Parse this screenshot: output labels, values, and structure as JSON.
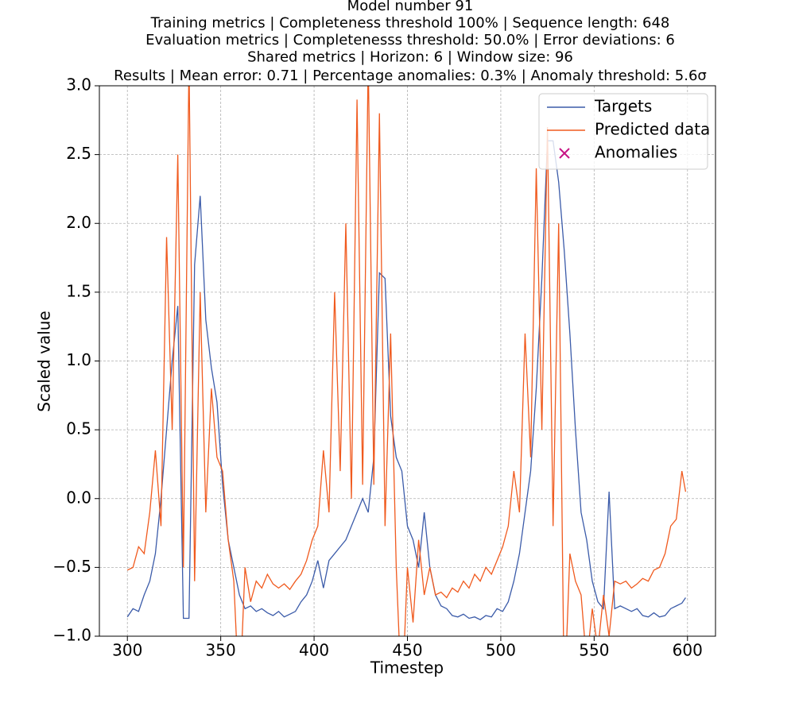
{
  "chart_data": {
    "type": "line",
    "title": [
      "Model number 91",
      "Training metrics | Completeness threshold 100% | Sequence length: 648",
      "Evaluation metrics | Completenesss threshold: 50.0% | Error deviations: 6",
      "Shared metrics | Horizon: 6 | Window size: 96",
      "Results | Mean error: 0.71 | Percentage anomalies: 0.3% | Anomaly threshold: 5.6σ"
    ],
    "x_label": "Timestep",
    "y_label": "Scaled value",
    "x": [
      300,
      303,
      306,
      309,
      312,
      315,
      318,
      321,
      324,
      327,
      330,
      333,
      336,
      339,
      342,
      345,
      348,
      351,
      354,
      357,
      360,
      363,
      366,
      369,
      372,
      375,
      378,
      381,
      384,
      387,
      390,
      393,
      396,
      399,
      402,
      405,
      408,
      411,
      414,
      417,
      420,
      423,
      426,
      429,
      432,
      435,
      438,
      441,
      444,
      447,
      450,
      453,
      456,
      459,
      462,
      465,
      468,
      471,
      474,
      477,
      480,
      483,
      486,
      489,
      492,
      495,
      498,
      501,
      504,
      507,
      510,
      513,
      516,
      519,
      522,
      525,
      528,
      531,
      534,
      537,
      540,
      543,
      546,
      549,
      552,
      555,
      558,
      561,
      564,
      567,
      570,
      573,
      576,
      579,
      582,
      585,
      588,
      591,
      594,
      597,
      599
    ],
    "series": [
      {
        "name": "Targets",
        "color": "#3b5ba9",
        "values": [
          -0.86,
          -0.8,
          -0.82,
          -0.7,
          -0.6,
          -0.4,
          0.0,
          0.5,
          1.0,
          1.4,
          -0.87,
          -0.87,
          1.7,
          2.2,
          1.3,
          0.95,
          0.7,
          0.1,
          -0.3,
          -0.5,
          -0.7,
          -0.8,
          -0.78,
          -0.82,
          -0.8,
          -0.83,
          -0.85,
          -0.82,
          -0.86,
          -0.84,
          -0.82,
          -0.75,
          -0.7,
          -0.6,
          -0.45,
          -0.65,
          -0.45,
          -0.4,
          -0.35,
          -0.3,
          -0.2,
          -0.1,
          0.0,
          -0.1,
          0.3,
          1.64,
          1.6,
          0.6,
          0.3,
          0.2,
          -0.2,
          -0.3,
          -0.5,
          -0.1,
          -0.5,
          -0.7,
          -0.78,
          -0.8,
          -0.85,
          -0.86,
          -0.84,
          -0.87,
          -0.86,
          -0.88,
          -0.85,
          -0.86,
          -0.8,
          -0.82,
          -0.75,
          -0.6,
          -0.4,
          -0.1,
          0.2,
          0.8,
          1.6,
          2.6,
          2.6,
          2.3,
          1.8,
          1.2,
          0.5,
          -0.1,
          -0.3,
          -0.6,
          -0.75,
          -0.8,
          0.05,
          -0.8,
          -0.78,
          -0.8,
          -0.82,
          -0.8,
          -0.85,
          -0.86,
          -0.83,
          -0.86,
          -0.85,
          -0.8,
          -0.78,
          -0.76,
          -0.72
        ]
      },
      {
        "name": "Predicted data",
        "color": "#f05a1e",
        "values": [
          -0.52,
          -0.5,
          -0.35,
          -0.4,
          -0.1,
          0.35,
          -0.2,
          1.9,
          0.5,
          2.5,
          -0.5,
          3.2,
          -0.6,
          1.5,
          -0.1,
          0.8,
          0.3,
          0.2,
          -0.3,
          -0.6,
          -1.5,
          -0.5,
          -0.75,
          -0.6,
          -0.65,
          -0.55,
          -0.62,
          -0.65,
          -0.62,
          -0.66,
          -0.6,
          -0.55,
          -0.45,
          -0.3,
          -0.2,
          0.35,
          -0.1,
          1.5,
          0.2,
          2.0,
          0.0,
          2.9,
          0.1,
          3.2,
          0.1,
          2.8,
          -0.2,
          1.2,
          -0.5,
          -1.5,
          -0.5,
          -0.9,
          -0.3,
          -0.7,
          -0.5,
          -0.7,
          -0.68,
          -0.72,
          -0.65,
          -0.68,
          -0.6,
          -0.65,
          -0.55,
          -0.6,
          -0.5,
          -0.55,
          -0.45,
          -0.35,
          -0.2,
          0.2,
          -0.1,
          1.2,
          0.3,
          2.4,
          0.5,
          2.7,
          -0.2,
          2.0,
          -1.5,
          -0.4,
          -0.6,
          -0.7,
          -1.2,
          -0.8,
          -1.1,
          -0.7,
          -1.0,
          -0.6,
          -0.62,
          -0.6,
          -0.65,
          -0.62,
          -0.58,
          -0.6,
          -0.52,
          -0.5,
          -0.4,
          -0.2,
          -0.15,
          0.2,
          0.05
        ]
      }
    ],
    "anomalies": {
      "name": "Anomalies",
      "color": "#c71585",
      "marker": "x",
      "x": [],
      "values": []
    },
    "xlim": [
      285,
      615
    ],
    "ylim": [
      -1,
      3
    ],
    "xticks": [
      300,
      350,
      400,
      450,
      500,
      550,
      600
    ],
    "yticks": [
      {
        "value": -1,
        "label": "−1.0"
      },
      {
        "value": -0.5,
        "label": "−0.5"
      },
      {
        "value": 0,
        "label": "0.0"
      },
      0.5,
      {
        "value": 1,
        "label": "1.0"
      },
      1.5,
      {
        "value": 2,
        "label": "2.0"
      },
      2.5,
      {
        "value": 3,
        "label": "3.0"
      }
    ],
    "grid": true,
    "legend": "upper right"
  }
}
